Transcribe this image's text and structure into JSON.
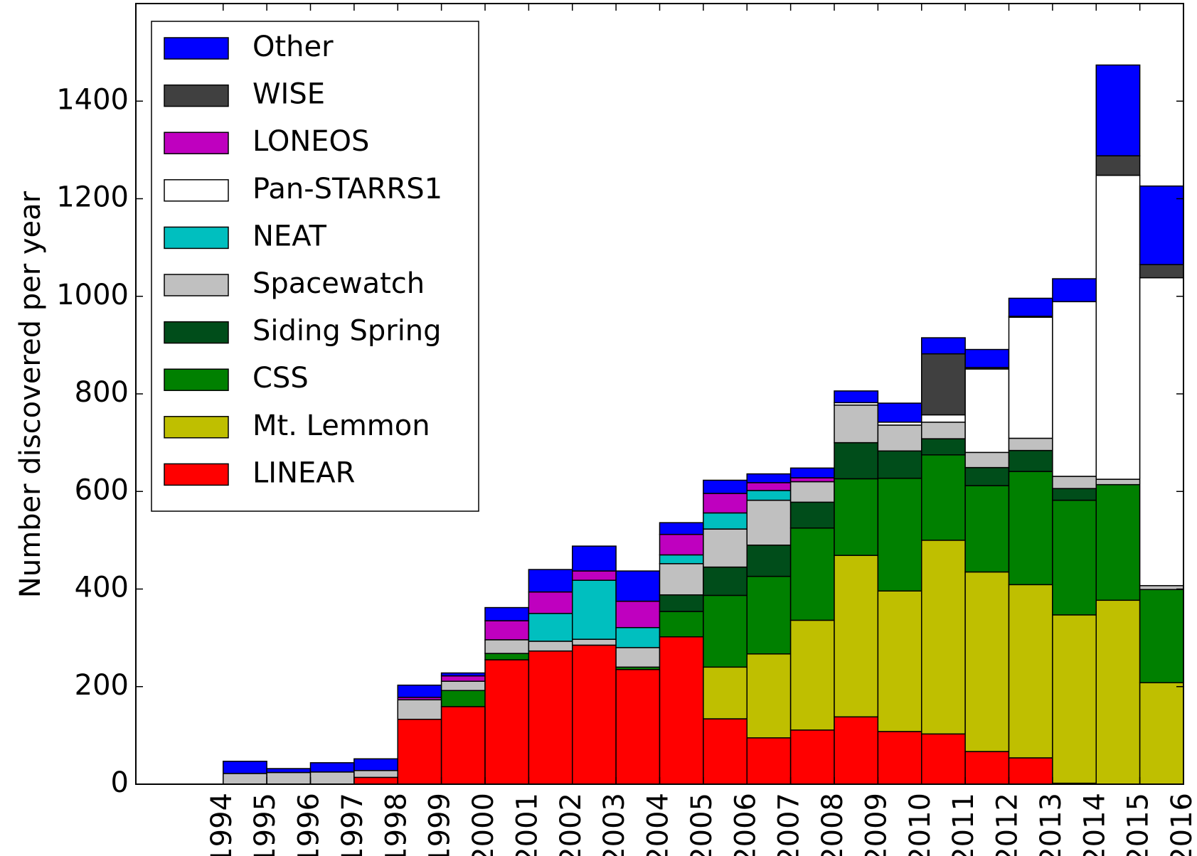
{
  "chart_data": {
    "type": "stacked_histogram",
    "y_label": "Number discovered per year",
    "bins": [
      1994,
      1995,
      1996,
      1997,
      1998,
      1999,
      2000,
      2001,
      2002,
      2003,
      2004,
      2005,
      2006,
      2007,
      2008,
      2009,
      2010,
      2011,
      2012,
      2013,
      2014,
      2015,
      2016
    ],
    "xlim": [
      1992,
      2016
    ],
    "xticks": [
      1994,
      1995,
      1996,
      1997,
      1998,
      1999,
      2000,
      2001,
      2002,
      2003,
      2004,
      2005,
      2006,
      2007,
      2008,
      2009,
      2010,
      2011,
      2012,
      2013,
      2014,
      2015,
      2016
    ],
    "ylim": [
      0,
      1600
    ],
    "yticks": [
      0,
      200,
      400,
      600,
      800,
      1000,
      1200,
      1400
    ],
    "legend": "upper left",
    "series": [
      {
        "name": "LINEAR",
        "color": "#ff0000",
        "values": [
          0,
          0,
          0,
          14,
          133,
          159,
          255,
          273,
          285,
          235,
          302,
          134,
          95,
          111,
          138,
          108,
          103,
          67,
          54,
          2,
          0,
          0
        ]
      },
      {
        "name": "Mt. Lemmon",
        "color": "#bfbf00",
        "values": [
          0,
          0,
          0,
          0,
          0,
          0,
          0,
          0,
          0,
          0,
          0,
          106,
          172,
          225,
          331,
          288,
          397,
          368,
          355,
          345,
          377,
          208
        ]
      },
      {
        "name": "CSS",
        "color": "#008000",
        "values": [
          0,
          0,
          0,
          0,
          0,
          33,
          13,
          0,
          0,
          5,
          52,
          147,
          159,
          189,
          157,
          231,
          175,
          177,
          232,
          235,
          237,
          191
        ]
      },
      {
        "name": "Siding Spring",
        "color": "#004d1a",
        "values": [
          0,
          0,
          0,
          0,
          0,
          0,
          0,
          0,
          0,
          0,
          34,
          58,
          64,
          53,
          74,
          56,
          33,
          37,
          43,
          24,
          0,
          0
        ]
      },
      {
        "name": "Spacewatch",
        "color": "#c0c0c0",
        "values": [
          22,
          24,
          25,
          14,
          40,
          19,
          28,
          20,
          12,
          40,
          64,
          78,
          92,
          42,
          77,
          53,
          34,
          31,
          25,
          25,
          11,
          8
        ]
      },
      {
        "name": "NEAT",
        "color": "#00bfbf",
        "values": [
          0,
          0,
          0,
          0,
          0,
          0,
          0,
          57,
          121,
          41,
          18,
          33,
          20,
          0,
          0,
          0,
          0,
          0,
          0,
          0,
          0,
          0
        ]
      },
      {
        "name": "Pan-STARRS1",
        "color": "#ffffff",
        "values": [
          0,
          0,
          0,
          0,
          0,
          0,
          0,
          0,
          0,
          0,
          0,
          0,
          0,
          0,
          5,
          6,
          15,
          171,
          248,
          358,
          623,
          631
        ]
      },
      {
        "name": "LONEOS",
        "color": "#bf00bf",
        "values": [
          0,
          0,
          0,
          0,
          5,
          11,
          39,
          44,
          19,
          54,
          42,
          40,
          16,
          8,
          0,
          0,
          0,
          0,
          0,
          0,
          0,
          0
        ]
      },
      {
        "name": "WISE",
        "color": "#404040",
        "values": [
          0,
          0,
          0,
          0,
          0,
          0,
          0,
          0,
          0,
          0,
          0,
          0,
          0,
          0,
          0,
          0,
          125,
          3,
          2,
          0,
          40,
          27
        ]
      },
      {
        "name": "Other",
        "color": "#0000ff",
        "values": [
          25,
          8,
          19,
          24,
          25,
          6,
          27,
          46,
          51,
          62,
          24,
          27,
          18,
          20,
          24,
          39,
          33,
          37,
          37,
          47,
          186,
          161
        ]
      }
    ]
  }
}
